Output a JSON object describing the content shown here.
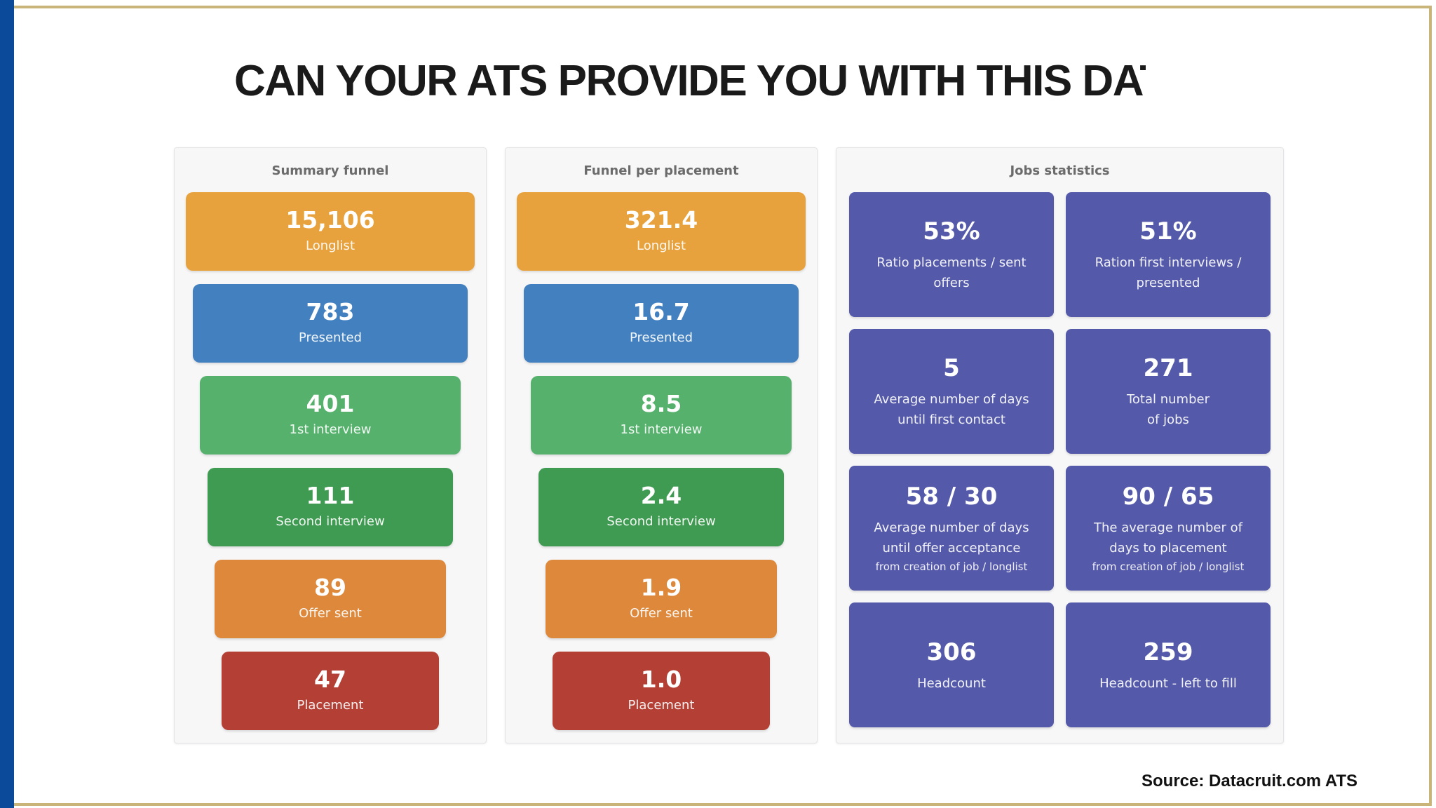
{
  "slide": {
    "title": "CAN YOUR ATS PROVIDE YOU WITH THIS DAT",
    "source": "Source: Datacruit.com ATS"
  },
  "summary_funnel": {
    "title": "Summary funnel",
    "items": [
      {
        "value": "15,106",
        "label": "Longlist"
      },
      {
        "value": "783",
        "label": "Presented"
      },
      {
        "value": "401",
        "label": "1st interview"
      },
      {
        "value": "111",
        "label": "Second interview"
      },
      {
        "value": "89",
        "label": "Offer sent"
      },
      {
        "value": "47",
        "label": "Placement"
      }
    ]
  },
  "funnel_per_placement": {
    "title": "Funnel per placement",
    "items": [
      {
        "value": "321.4",
        "label": "Longlist"
      },
      {
        "value": "16.7",
        "label": "Presented"
      },
      {
        "value": "8.5",
        "label": "1st interview"
      },
      {
        "value": "2.4",
        "label": "Second interview"
      },
      {
        "value": "1.9",
        "label": "Offer sent"
      },
      {
        "value": "1.0",
        "label": "Placement"
      }
    ]
  },
  "jobs_statistics": {
    "title": "Jobs statistics",
    "items": [
      {
        "value": "53%",
        "label": "Ratio placements / sent offers"
      },
      {
        "value": "51%",
        "label": "Ration first interviews / presented"
      },
      {
        "value": "5",
        "label": "Average number of days until first contact"
      },
      {
        "value": "271",
        "label": "Total number of jobs"
      },
      {
        "value": "58 / 30",
        "label": "Average number of days until offer acceptance",
        "sub": "from creation of job / longlist"
      },
      {
        "value": "90 / 65",
        "label": "The average number of days to placement",
        "sub": "from creation of job / longlist"
      },
      {
        "value": "306",
        "label": "Headcount"
      },
      {
        "value": "259",
        "label": "Headcount - left to fill"
      }
    ]
  },
  "colors": {
    "longlist": "#e8a23d",
    "presented": "#4380bf",
    "first_interview": "#55b16c",
    "second_interview": "#3f9a52",
    "offer_sent": "#dd883a",
    "placement": "#b33f35",
    "jobs_tile": "#5459a9",
    "accent_bar": "#0b4a9b",
    "rule": "#c9b47a"
  }
}
